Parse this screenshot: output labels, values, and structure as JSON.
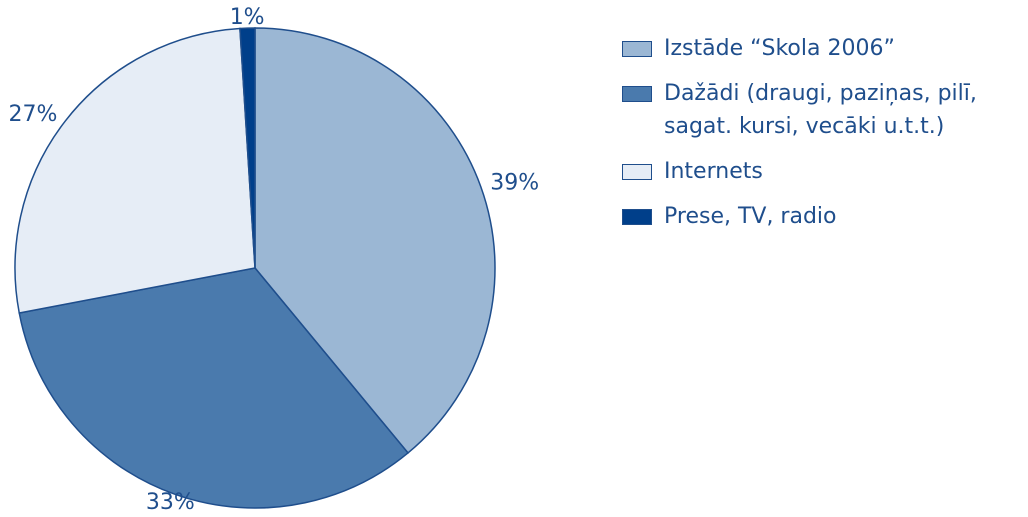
{
  "chart_data": {
    "type": "pie",
    "categories": [
      "Izstāde “Skola 2006”",
      "Dažādi (draugi, paziņas, pilī, sagat. kursi, vecāki u.t.t.)",
      "Internets",
      "Prese, TV, radio"
    ],
    "values": [
      39,
      33,
      27,
      1
    ],
    "value_labels": [
      "39%",
      "33%",
      "27%",
      "1%"
    ],
    "colors": [
      "#9bb7d4",
      "#4a7aad",
      "#e6edf6",
      "#003f8a"
    ],
    "legend": "right"
  }
}
